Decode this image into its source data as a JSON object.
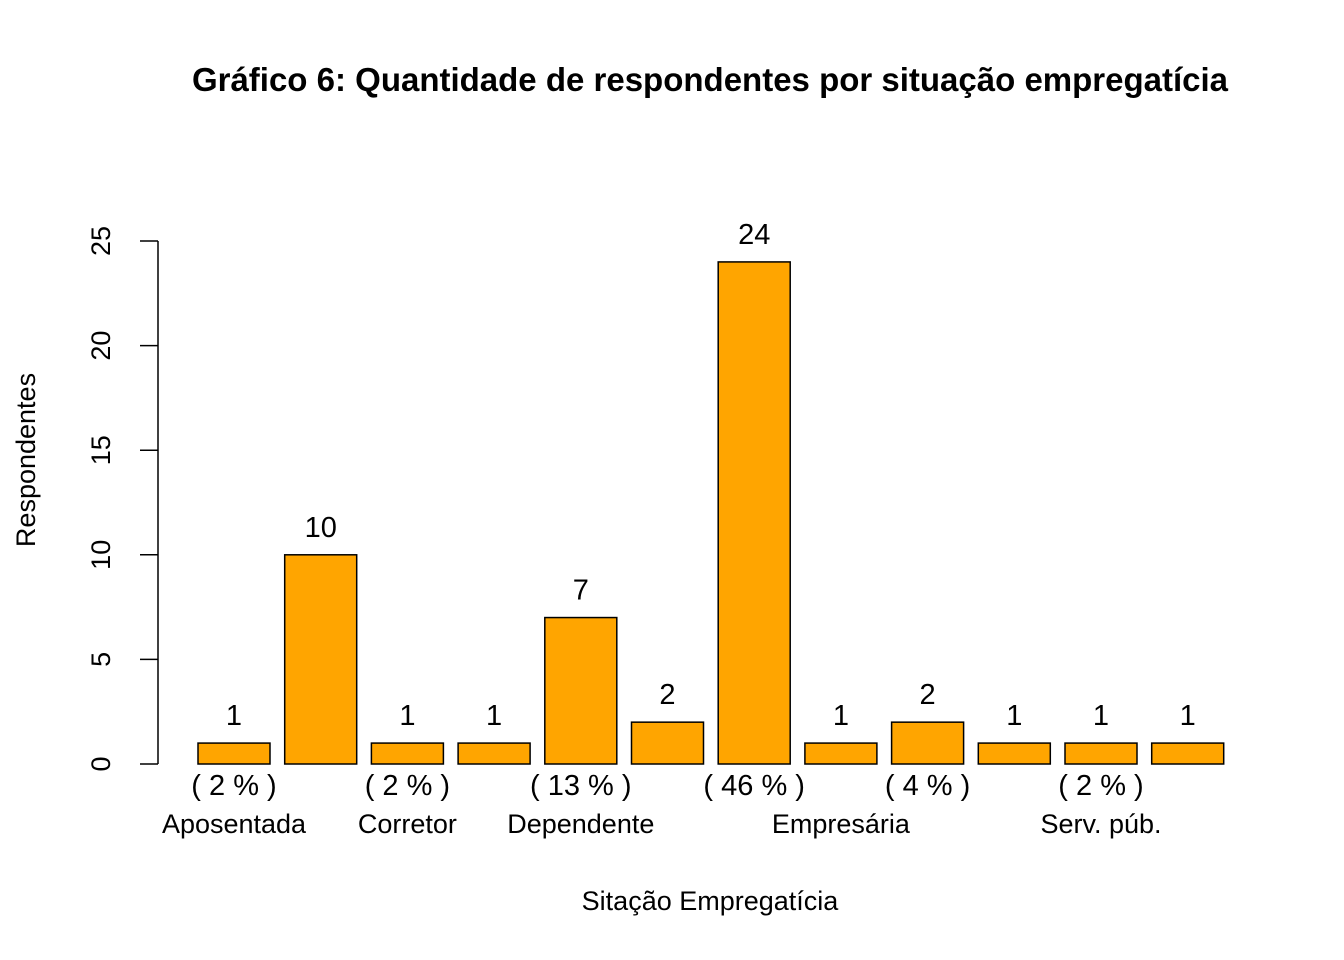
{
  "chart_data": {
    "type": "bar",
    "title": "Gráfico 6: Quantidade de respondentes por situação empregatícia",
    "xlabel": "Sitação Empregatícia",
    "ylabel": "Respondentes",
    "ylim": [
      0,
      25
    ],
    "yticks": [
      0,
      5,
      10,
      15,
      20,
      25
    ],
    "values": [
      1,
      10,
      1,
      1,
      7,
      2,
      24,
      1,
      2,
      1,
      1,
      1
    ],
    "value_labels": [
      "1",
      "10",
      "1",
      "1",
      "7",
      "2",
      "24",
      "1",
      "2",
      "1",
      "1",
      "1"
    ],
    "percent_labels": [
      "( 2 % )",
      "",
      "( 2 % )",
      "",
      "( 13 % )",
      "",
      "( 46 % )",
      "",
      "( 4 % )",
      "",
      "( 2 % )",
      ""
    ],
    "category_labels": [
      "Aposentada",
      "",
      "Corretor",
      "",
      "Dependente",
      "",
      "",
      "Empresária",
      "",
      "",
      "Serv. púb.",
      ""
    ],
    "bar_color": "#FFA500",
    "bar_border": "#000000",
    "grid": false,
    "legend": "none"
  }
}
